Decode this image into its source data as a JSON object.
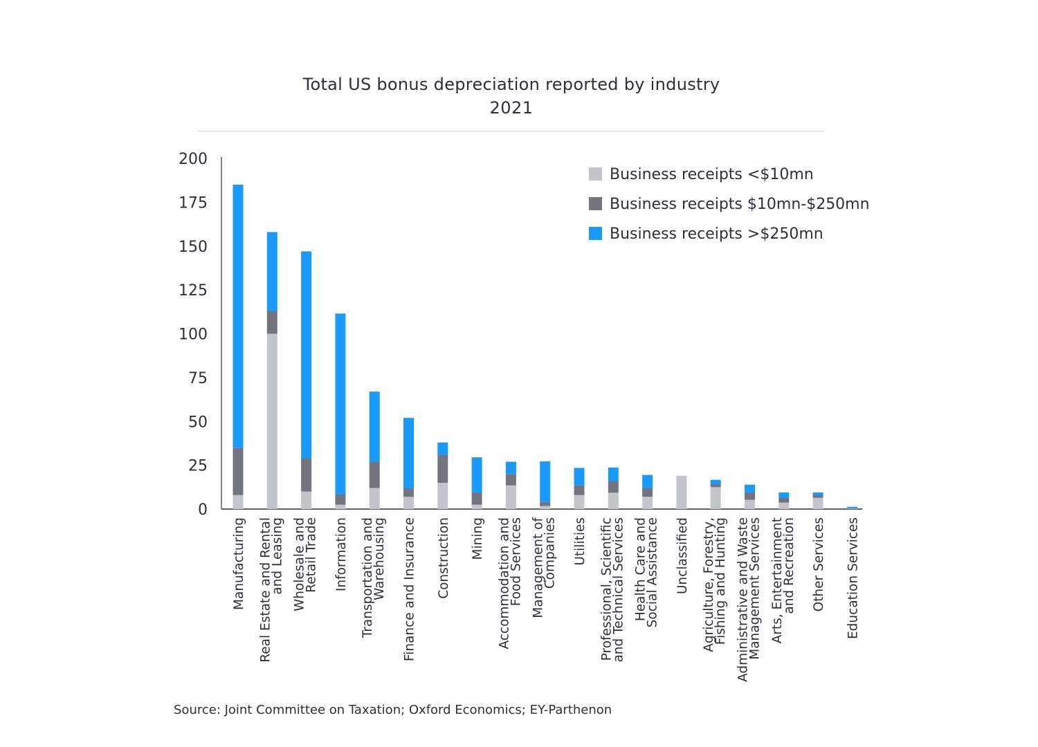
{
  "chart_data": {
    "type": "bar",
    "stacked": true,
    "title": "Total US bonus depreciation reported by industry",
    "subtitle": "2021",
    "xlabel": "",
    "ylabel": "",
    "ylim": [
      0,
      200
    ],
    "yticks": [
      0,
      25,
      50,
      75,
      100,
      125,
      150,
      175,
      200
    ],
    "grid": false,
    "legend_position": "top-right",
    "categories": [
      [
        "Manufacturing"
      ],
      [
        "Real Estate and Rental",
        "and Leasing"
      ],
      [
        "Wholesale and",
        "Retail Trade"
      ],
      [
        "Information"
      ],
      [
        "Transportation and",
        "Warehousing"
      ],
      [
        "Finance and Insurance"
      ],
      [
        "Construction"
      ],
      [
        "Mining"
      ],
      [
        "Accommodation and",
        "Food Services"
      ],
      [
        "Management of",
        "Companies"
      ],
      [
        "Utilities"
      ],
      [
        "Professional, Scientific",
        "and Technical Services"
      ],
      [
        "Health Care and",
        "Social Assistance"
      ],
      [
        "Unclassified"
      ],
      [
        "Agriculture, Forestry,",
        "Fishing and Hunting"
      ],
      [
        "Administrative and Waste",
        "Management Services"
      ],
      [
        "Arts, Entertainment",
        "and Recreation"
      ],
      [
        "Other Services"
      ],
      [
        "Education Services"
      ]
    ],
    "series": [
      {
        "name": "Business receipts <$10mn",
        "color": "#c4c5cb",
        "values": [
          8,
          100,
          10,
          2.5,
          12,
          7,
          15,
          2.5,
          13.5,
          1.7,
          8,
          9.3,
          7,
          19,
          12.5,
          5.3,
          3.7,
          6.4,
          0.2
        ]
      },
      {
        "name": "Business receipts $10mn-$250mn",
        "color": "#747480",
        "values": [
          27,
          13,
          19,
          6,
          15,
          5,
          16,
          7,
          6.5,
          2.5,
          5.5,
          6.7,
          5,
          0,
          1.7,
          4.2,
          2.6,
          1.5,
          0.3
        ]
      },
      {
        "name": "Business receipts >$250mn",
        "color": "#1a9afa",
        "values": [
          150,
          45,
          118,
          103,
          40,
          40,
          7,
          20,
          7,
          23,
          10,
          7.7,
          7.5,
          0,
          2.5,
          4.4,
          3.2,
          1.6,
          0.8
        ]
      }
    ]
  },
  "source": "Source: Joint Committee on Taxation; Oxford Economics; EY-Parthenon"
}
